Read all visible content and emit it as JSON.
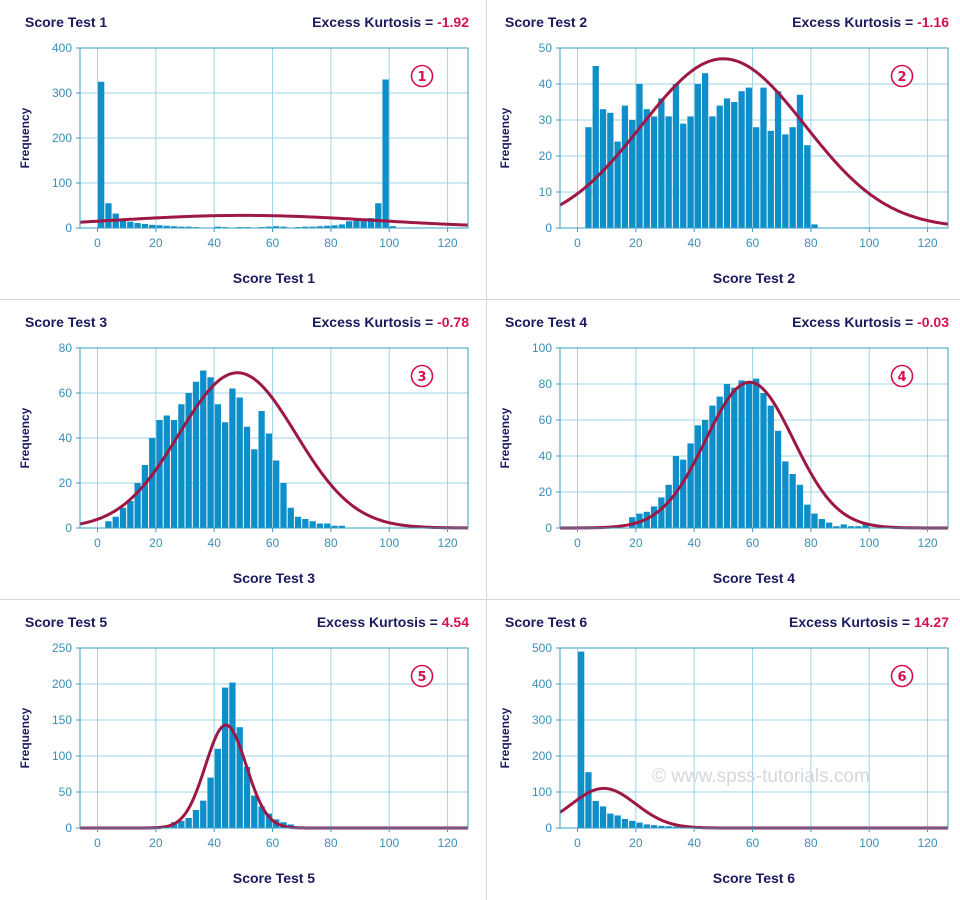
{
  "colors": {
    "bar": "#0f8fc9",
    "curve": "#9e1845",
    "axis": "#3a9cc3",
    "grid": "#9fd3e6",
    "title": "#1a1a5e",
    "accent": "#d6104f",
    "divider": "#d6d6d6"
  },
  "watermark": "© www.spss-tutorials.com",
  "kurtosis_label": "Excess Kurtosis = ",
  "charts": [
    {
      "title": "Score Test 1",
      "kurtosis_value": "-1.92",
      "badge": "①",
      "xlabel": "Score Test 1",
      "ylabel": "Frequency",
      "ymax": 400,
      "yticks": [
        0,
        100,
        200,
        300,
        400
      ],
      "yticks_text": [
        "0",
        "100",
        "200",
        "300",
        "400"
      ],
      "xticks": [
        0,
        20,
        40,
        60,
        80,
        100,
        120
      ],
      "xticks_text": [
        "0",
        "20",
        "40",
        "60",
        "80",
        "100",
        "120"
      ],
      "xlim": [
        -6,
        127
      ],
      "normal": {
        "mean": 50,
        "sd": 45,
        "peak": 28
      },
      "chart_data": {
        "type": "bar",
        "bin_width": 2.5,
        "bins": [
          0,
          2.5,
          5,
          7.5,
          10,
          12.5,
          15,
          17.5,
          20,
          22.5,
          25,
          27.5,
          30,
          32.5,
          40,
          42.5,
          47.5,
          50,
          55,
          57.5,
          60,
          62.5,
          67.5,
          70,
          72.5,
          75,
          77.5,
          80,
          82.5,
          85,
          87.5,
          90,
          92.5,
          95,
          97.5,
          100
        ],
        "values": [
          325,
          55,
          32,
          18,
          14,
          11,
          9,
          7,
          6,
          5,
          4,
          3,
          3,
          2,
          3,
          2,
          2,
          2,
          2,
          3,
          4,
          3,
          2,
          3,
          3,
          4,
          5,
          6,
          8,
          15,
          18,
          20,
          22,
          55,
          330,
          4
        ]
      }
    },
    {
      "title": "Score Test 2",
      "kurtosis_value": "-1.16",
      "badge": "②",
      "xlabel": "Score Test 2",
      "ylabel": "Frequency",
      "ymax": 50,
      "yticks": [
        0,
        10,
        20,
        30,
        40,
        50
      ],
      "yticks_text": [
        "0",
        "10",
        "20",
        "30",
        "40",
        "50"
      ],
      "xticks": [
        0,
        20,
        40,
        60,
        80,
        100,
        120
      ],
      "xticks_text": [
        "0",
        "20",
        "40",
        "60",
        "80",
        "100",
        "120"
      ],
      "xlim": [
        -6,
        127
      ],
      "normal": {
        "mean": 50,
        "sd": 28,
        "peak": 47
      },
      "chart_data": {
        "type": "bar",
        "bin_width": 2.5,
        "bins": [
          2.5,
          5,
          7.5,
          10,
          12.5,
          15,
          17.5,
          20,
          22.5,
          25,
          27.5,
          30,
          32.5,
          35,
          37.5,
          40,
          42.5,
          45,
          47.5,
          50,
          52.5,
          55,
          57.5,
          60,
          62.5,
          65,
          67.5,
          70,
          72.5,
          75,
          77.5,
          80,
          82.5,
          85,
          87.5,
          90,
          92.5,
          95,
          97.5,
          100
        ],
        "values": [
          28,
          45,
          33,
          32,
          24,
          34,
          30,
          40,
          33,
          31,
          36,
          31,
          40,
          29,
          31,
          40,
          43,
          31,
          34,
          36,
          35,
          38,
          39,
          28,
          39,
          27,
          38,
          26,
          28,
          37,
          23,
          1,
          0,
          0,
          0,
          0,
          0,
          0,
          0,
          0
        ]
      }
    },
    {
      "title": "Score Test 3",
      "kurtosis_value": "-0.78",
      "badge": "③",
      "xlabel": "Score Test 3",
      "ylabel": "Frequency",
      "ymax": 80,
      "yticks": [
        0,
        20,
        40,
        60,
        80
      ],
      "yticks_text": [
        "0",
        "20",
        "40",
        "60",
        "80"
      ],
      "xticks": [
        0,
        20,
        40,
        60,
        80,
        100,
        120
      ],
      "xticks_text": [
        "0",
        "20",
        "40",
        "60",
        "80",
        "100",
        "120"
      ],
      "xlim": [
        -6,
        127
      ],
      "normal": {
        "mean": 48,
        "sd": 20,
        "peak": 69
      },
      "chart_data": {
        "type": "bar",
        "bin_width": 2.5,
        "bins": [
          2.5,
          5,
          7.5,
          10,
          12.5,
          15,
          17.5,
          20,
          22.5,
          25,
          27.5,
          30,
          32.5,
          35,
          37.5,
          40,
          42.5,
          45,
          47.5,
          50,
          52.5,
          55,
          57.5,
          60,
          62.5,
          65,
          67.5,
          70,
          72.5,
          75,
          77.5,
          80,
          82.5,
          85,
          87.5,
          90,
          92.5,
          95
        ],
        "values": [
          3,
          5,
          9,
          12,
          20,
          28,
          40,
          48,
          50,
          48,
          55,
          60,
          65,
          70,
          67,
          55,
          47,
          62,
          58,
          45,
          35,
          52,
          42,
          30,
          20,
          9,
          5,
          4,
          3,
          2,
          2,
          1,
          1,
          0,
          0,
          0,
          0,
          0
        ]
      }
    },
    {
      "title": "Score Test 4",
      "kurtosis_value": "-0.03",
      "badge": "④",
      "xlabel": "Score Test 4",
      "ylabel": "Frequency",
      "ymax": 100,
      "yticks": [
        0,
        20,
        40,
        60,
        80,
        100
      ],
      "yticks_text": [
        "0",
        "20",
        "40",
        "60",
        "80",
        "100"
      ],
      "xticks": [
        0,
        20,
        40,
        60,
        80,
        100,
        120
      ],
      "xticks_text": [
        "0",
        "20",
        "40",
        "60",
        "80",
        "100",
        "120"
      ],
      "xlim": [
        -6,
        127
      ],
      "normal": {
        "mean": 59,
        "sd": 15,
        "peak": 81
      },
      "chart_data": {
        "type": "bar",
        "bin_width": 2.5,
        "bins": [
          17.5,
          20,
          22.5,
          25,
          27.5,
          30,
          32.5,
          35,
          37.5,
          40,
          42.5,
          45,
          47.5,
          50,
          52.5,
          55,
          57.5,
          60,
          62.5,
          65,
          67.5,
          70,
          72.5,
          75,
          77.5,
          80,
          82.5,
          85,
          87.5,
          90,
          92.5,
          95,
          97.5
        ],
        "values": [
          6,
          8,
          9,
          12,
          17,
          24,
          40,
          38,
          47,
          57,
          60,
          68,
          73,
          80,
          78,
          82,
          81,
          83,
          75,
          68,
          54,
          37,
          30,
          24,
          13,
          8,
          5,
          3,
          1,
          2,
          1,
          1,
          2
        ]
      }
    },
    {
      "title": "Score Test 5",
      "kurtosis_value": "4.54",
      "badge": "⑤",
      "xlabel": "Score Test 5",
      "ylabel": "Frequency",
      "ymax": 250,
      "yticks": [
        0,
        50,
        100,
        150,
        200,
        250
      ],
      "yticks_text": [
        "0",
        "50",
        "100",
        "150",
        "200",
        "250"
      ],
      "xticks": [
        0,
        20,
        40,
        60,
        80,
        100,
        120
      ],
      "xticks_text": [
        "0",
        "20",
        "40",
        "60",
        "80",
        "100",
        "120"
      ],
      "xlim": [
        -6,
        127
      ],
      "normal": {
        "mean": 44,
        "sd": 7,
        "peak": 143
      },
      "chart_data": {
        "type": "bar",
        "bin_width": 2.5,
        "bins": [
          25,
          27.5,
          30,
          32.5,
          35,
          37.5,
          40,
          42.5,
          45,
          47.5,
          50,
          52.5,
          55,
          57.5,
          60,
          62.5,
          65,
          67.5
        ],
        "values": [
          8,
          10,
          14,
          25,
          38,
          70,
          110,
          195,
          202,
          140,
          85,
          45,
          30,
          20,
          12,
          8,
          5,
          2
        ]
      }
    },
    {
      "title": "Score Test 6",
      "kurtosis_value": "14.27",
      "badge": "⑥",
      "xlabel": "Score Test 6",
      "ylabel": "Frequency",
      "ymax": 500,
      "yticks": [
        0,
        100,
        200,
        300,
        400,
        500
      ],
      "yticks_text": [
        "0",
        "100",
        "200",
        "300",
        "400",
        "500"
      ],
      "xticks": [
        0,
        20,
        40,
        60,
        80,
        100,
        120
      ],
      "xticks_text": [
        "0",
        "20",
        "40",
        "60",
        "80",
        "100",
        "120"
      ],
      "xlim": [
        -6,
        127
      ],
      "normal": {
        "mean": 9,
        "sd": 11,
        "peak": 110
      },
      "chart_data": {
        "type": "bar",
        "bin_width": 2.5,
        "bins": [
          0,
          2.5,
          5,
          7.5,
          10,
          12.5,
          15,
          17.5,
          20,
          22.5,
          25,
          27.5,
          30,
          32.5,
          35,
          37.5,
          40
        ],
        "values": [
          490,
          155,
          75,
          60,
          40,
          35,
          25,
          20,
          15,
          10,
          8,
          6,
          5,
          4,
          3,
          2,
          1
        ]
      }
    }
  ]
}
